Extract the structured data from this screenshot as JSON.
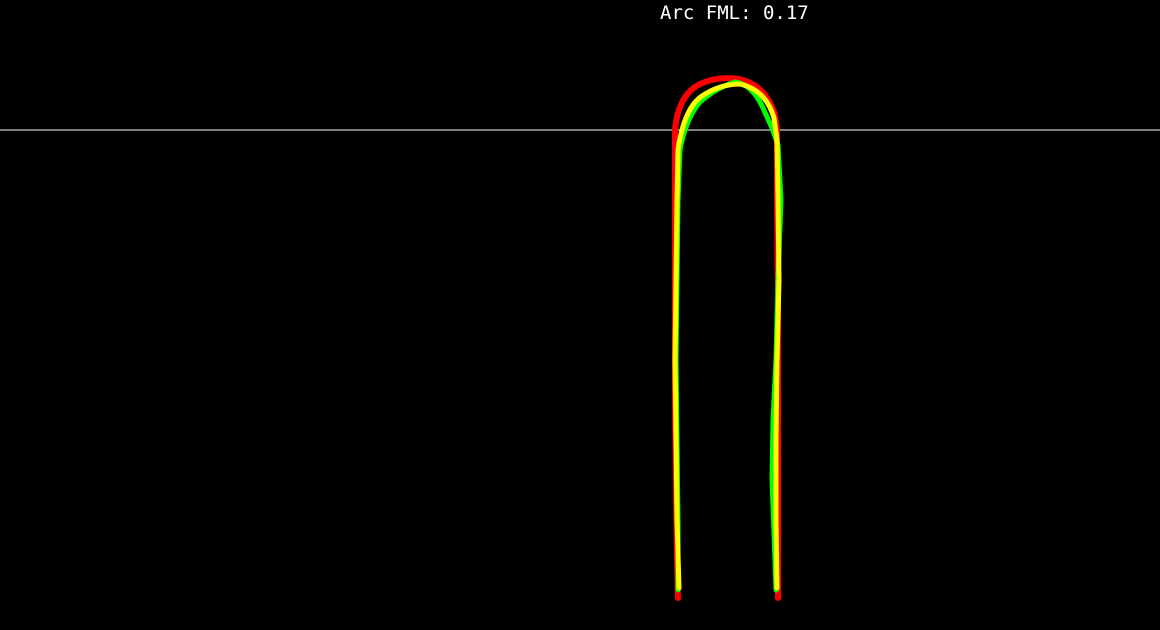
{
  "metric": {
    "label": "Arc FML: 0.17"
  },
  "colors": {
    "background": "#000000",
    "reference_line": "#ffffff",
    "contour_red": "#ff0000",
    "contour_green": "#00ff00",
    "contour_yellow": "#ffff00"
  }
}
